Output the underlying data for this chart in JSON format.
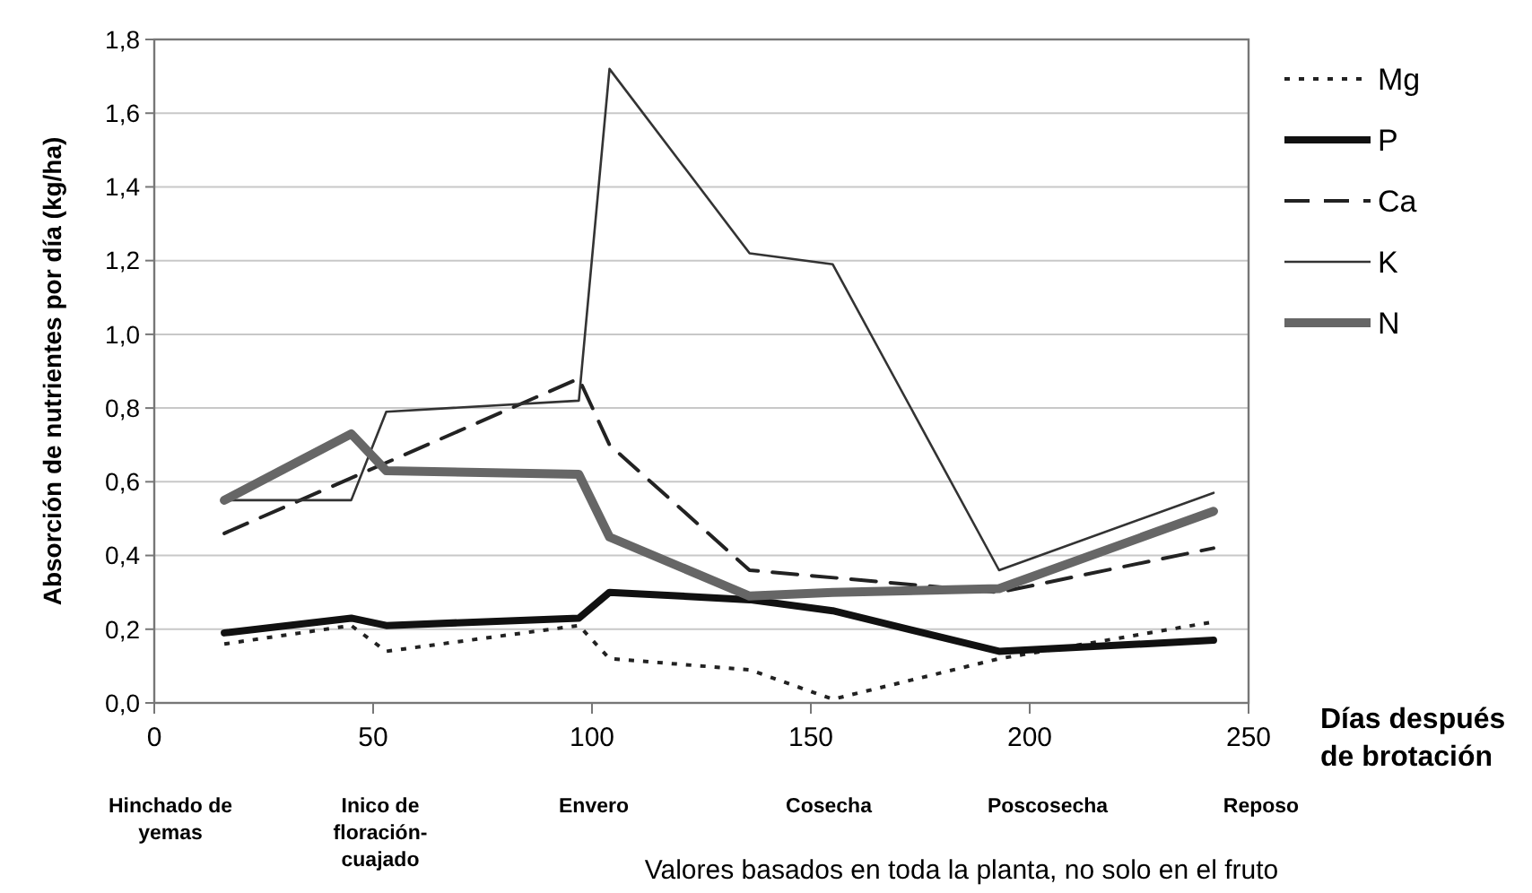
{
  "chart_data": {
    "type": "line",
    "ylabel": "Absorción de nutrientes por día (kg/ha)",
    "xlabel": "Días después de brotación",
    "xlim": [
      0,
      250
    ],
    "xticks": [
      0,
      50,
      100,
      150,
      200,
      250
    ],
    "ylim": [
      0,
      1.8
    ],
    "yticks": [
      {
        "value": 0,
        "label": "0,0"
      },
      {
        "value": 0.2,
        "label": "0,2"
      },
      {
        "value": 0.4,
        "label": "0,4"
      },
      {
        "value": 0.6,
        "label": "0,6"
      },
      {
        "value": 0.8,
        "label": "0,8"
      },
      {
        "value": 1,
        "label": "1,0"
      },
      {
        "value": 1.2,
        "label": "1,2"
      },
      {
        "value": 1.4,
        "label": "1,4"
      },
      {
        "value": 1.6,
        "label": "1,6"
      },
      {
        "value": 1.8,
        "label": "1,8"
      }
    ],
    "grid": "y",
    "legend": "right",
    "marker": "none",
    "series": [
      {
        "name": "Mg",
        "color": "#222222",
        "line_style": "dotted",
        "x": [
          16,
          45,
          53,
          97,
          104,
          136,
          155,
          193,
          242
        ],
        "values": [
          0.16,
          0.21,
          0.14,
          0.21,
          0.12,
          0.09,
          0.01,
          0.12,
          0.22
        ]
      },
      {
        "name": "P",
        "color": "#111111",
        "line_style": "solid",
        "x": [
          16,
          45,
          53,
          97,
          104,
          136,
          155,
          193,
          242
        ],
        "values": [
          0.19,
          0.23,
          0.21,
          0.23,
          0.3,
          0.28,
          0.25,
          0.14,
          0.17
        ]
      },
      {
        "name": "Ca",
        "color": "#222222",
        "line_style": "dashed",
        "x": [
          16,
          97,
          104,
          136,
          193,
          242
        ],
        "values": [
          0.46,
          0.88,
          0.7,
          0.36,
          0.3,
          0.42
        ]
      },
      {
        "name": "K",
        "color": "#333333",
        "line_style": "solid",
        "x": [
          16,
          45,
          53,
          97,
          104,
          136,
          155,
          193,
          242
        ],
        "values": [
          0.55,
          0.55,
          0.79,
          0.82,
          1.72,
          1.22,
          1.19,
          0.36,
          0.57
        ]
      },
      {
        "name": "N",
        "color": "#666666",
        "line_style": "solid",
        "x": [
          16,
          45,
          53,
          97,
          104,
          136,
          155,
          193,
          242
        ],
        "values": [
          0.55,
          0.73,
          0.63,
          0.62,
          0.45,
          0.29,
          0.3,
          0.31,
          0.52
        ]
      }
    ],
    "annotations": [
      "Hinchado de yemas",
      "Inico de floración-cuajado",
      "Envero",
      "Cosecha",
      "Poscosecha",
      "Reposo",
      "Valores basados en toda la planta, no solo en el fruto"
    ]
  }
}
